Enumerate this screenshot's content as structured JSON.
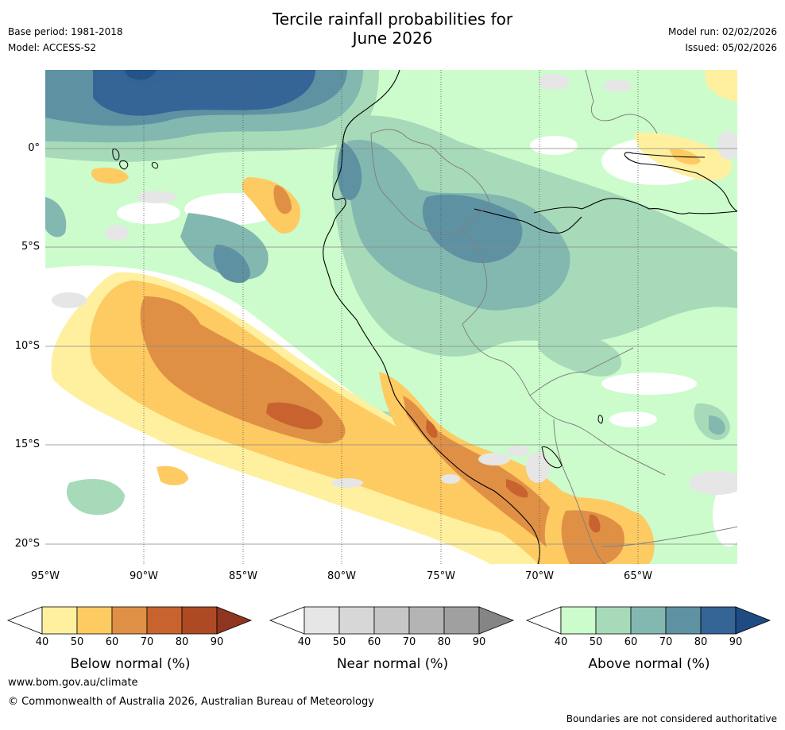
{
  "header": {
    "title_line1": "Tercile rainfall probabilities for",
    "title_line2": "June 2026",
    "base_period": "Base period: 1981-2018",
    "model": "Model: ACCESS-S2",
    "model_run": "Model run: 02/02/2026",
    "issued": "Issued: 05/02/2026"
  },
  "map": {
    "lat_labels": [
      "0°",
      "5°S",
      "10°S",
      "15°S",
      "20°S"
    ],
    "lon_labels": [
      "95°W",
      "90°W",
      "85°W",
      "80°W",
      "75°W",
      "70°W",
      "65°W"
    ],
    "lat_values": [
      0,
      -5,
      -10,
      -15,
      -20
    ],
    "lon_values": [
      -95,
      -90,
      -85,
      -80,
      -75,
      -70,
      -65
    ],
    "extent": {
      "lon_min": -95,
      "lon_max": -60,
      "lat_min": -21,
      "lat_max": 4
    }
  },
  "colorbars": [
    {
      "id": "below",
      "title": "Below normal (%)",
      "ticks": [
        "40",
        "50",
        "60",
        "70",
        "80",
        "90"
      ],
      "colors": [
        "#fff0a0",
        "#fecb62",
        "#e09045",
        "#c8632f",
        "#ad4a24"
      ],
      "arrow_color": "#8f3620"
    },
    {
      "id": "near",
      "title": "Near normal (%)",
      "ticks": [
        "40",
        "50",
        "60",
        "70",
        "80",
        "90"
      ],
      "colors": [
        "#e6e6e6",
        "#d7d7d7",
        "#c6c6c6",
        "#b4b4b4",
        "#a0a0a0"
      ],
      "arrow_color": "#858585"
    },
    {
      "id": "above",
      "title": "Above normal (%)",
      "ticks": [
        "40",
        "50",
        "60",
        "70",
        "80",
        "90"
      ],
      "colors": [
        "#ccfccc",
        "#a7dab9",
        "#83b8b0",
        "#5e92a3",
        "#356496"
      ],
      "arrow_color": "#1d4b82"
    }
  ],
  "footer": {
    "url": "www.bom.gov.au/climate",
    "copyright": "© Commonwealth of Australia 2026, Australian Bureau of Meteorology",
    "disclaimer": "Boundaries are not considered authoritative"
  }
}
